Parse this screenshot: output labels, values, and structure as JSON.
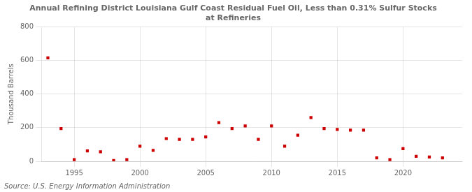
{
  "chart_data": {
    "type": "scatter",
    "title": [
      "Annual Refining District Louisiana Gulf Coast Residual Fuel Oil, Less than 0.31% Sulfur Stocks",
      "at Refineries"
    ],
    "ylabel": "Thousand Barrels",
    "annotations": [
      "Source: U.S. Energy Information Administration"
    ],
    "x": [
      1993,
      1994,
      1995,
      1996,
      1997,
      1998,
      1999,
      2000,
      2001,
      2002,
      2003,
      2004,
      2005,
      2006,
      2007,
      2008,
      2009,
      2010,
      2011,
      2012,
      2013,
      2014,
      2015,
      2016,
      2017,
      2018,
      2019,
      2020,
      2021,
      2022,
      2023
    ],
    "values": [
      615,
      195,
      10,
      62,
      57,
      5,
      10,
      90,
      65,
      135,
      130,
      130,
      145,
      230,
      195,
      210,
      130,
      210,
      90,
      155,
      260,
      195,
      190,
      185,
      185,
      20,
      10,
      75,
      30,
      25,
      20
    ],
    "color": "#cc0000",
    "marker": "square",
    "xlim": [
      1992.5,
      2024.5
    ],
    "xticks": [
      1995,
      2000,
      2005,
      2010,
      2015,
      2020
    ],
    "ylim": [
      0,
      800
    ],
    "yticks": [
      0,
      200,
      400,
      600,
      800
    ],
    "grid": true
  }
}
